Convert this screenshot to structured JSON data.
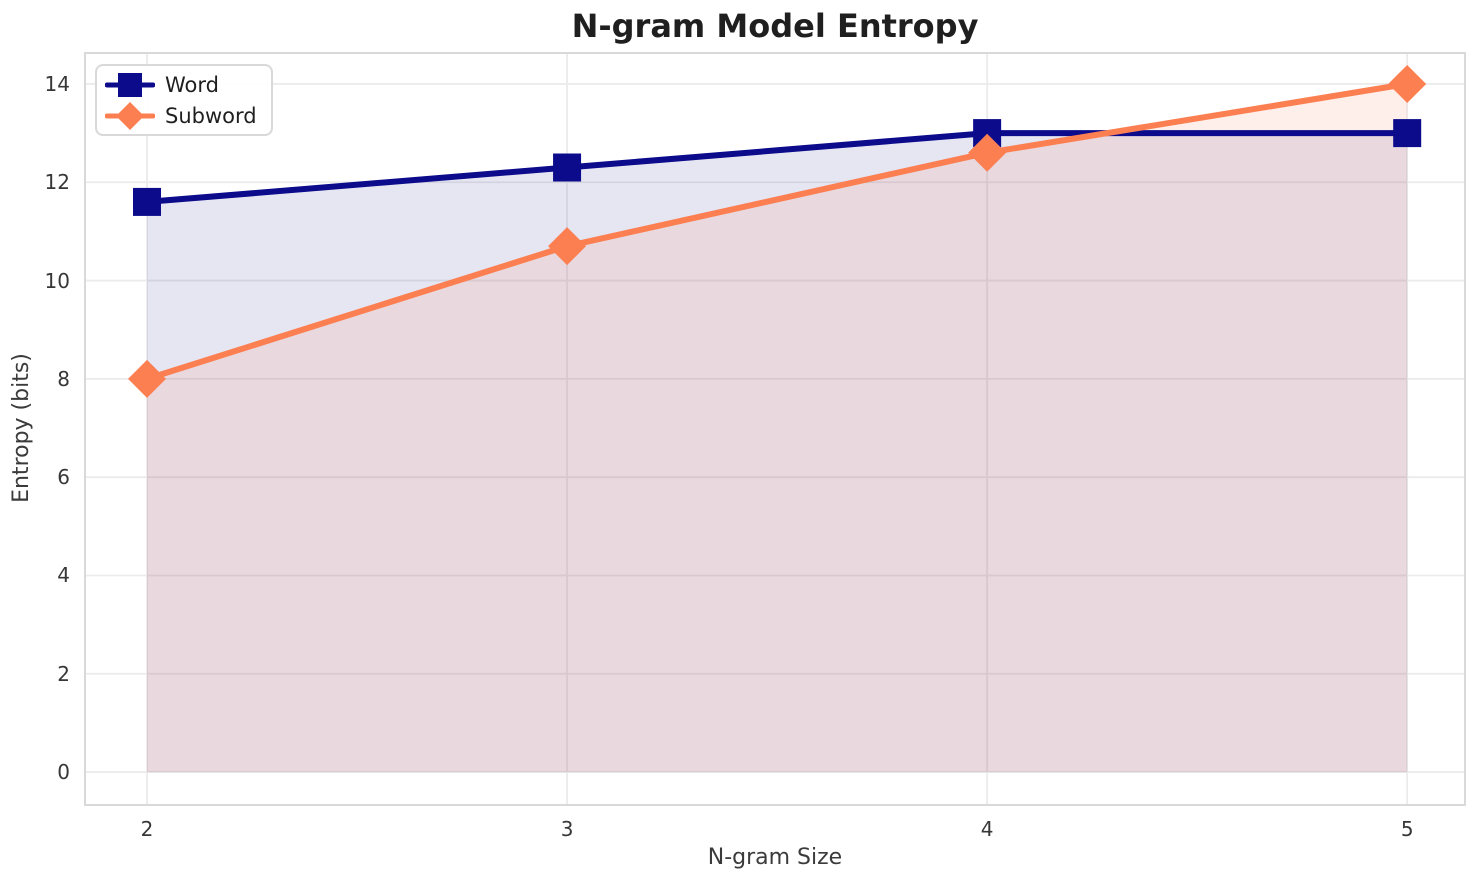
{
  "chart_data": {
    "type": "line",
    "title": "N-gram Model Entropy",
    "xlabel": "N-gram Size",
    "ylabel": "Entropy (bits)",
    "x": [
      2,
      3,
      4,
      5
    ],
    "series": [
      {
        "name": "Word",
        "color": "#0b0b8b",
        "marker": "square",
        "values": [
          11.6,
          12.3,
          13.0,
          13.0
        ],
        "fill_opacity": 0.1
      },
      {
        "name": "Subword",
        "color": "#fc7f52",
        "marker": "diamond",
        "values": [
          8.0,
          10.7,
          12.6,
          14.0
        ],
        "fill_opacity": 0.12
      }
    ],
    "xticks": [
      2,
      3,
      4,
      5
    ],
    "yticks": [
      0,
      2,
      4,
      6,
      8,
      10,
      12,
      14
    ],
    "xlim": [
      1.85,
      5.14
    ],
    "ylim": [
      -0.69,
      14.65
    ],
    "grid": true,
    "grid_color": "#ebebeb",
    "axes_border_color": "#d9d9d9",
    "tick_label_color": "#373737",
    "title_color": "#1f1f1f",
    "legend_position": "upper left",
    "fill_to_zero": true
  }
}
